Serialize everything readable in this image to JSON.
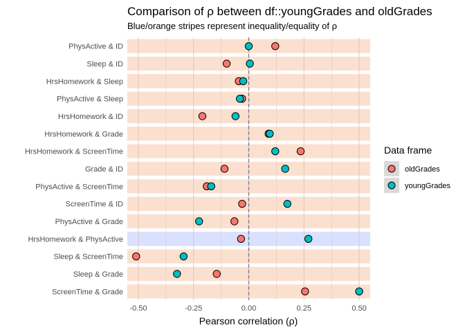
{
  "chart_data": {
    "type": "scatter",
    "title": "Comparison of ρ between df::youngGrades and oldGrades",
    "subtitle": "Blue/orange stripes represent inequality/equality of ρ",
    "xlabel": "Pearson correlation (ρ)",
    "ylabel": "",
    "xlim": [
      -0.55,
      0.55
    ],
    "xticks": [
      -0.5,
      -0.25,
      0,
      0.25,
      0.5
    ],
    "xtick_labels": [
      "-0.50",
      "-0.25",
      "0.00",
      "0.25",
      "0.50"
    ],
    "reference_line": 0,
    "grid": true,
    "legend_position": "right",
    "legend": {
      "title": "Data frame",
      "entries": [
        {
          "name": "oldGrades",
          "color": "#F8766D"
        },
        {
          "name": "youngGrades",
          "color": "#00BFC4"
        }
      ]
    },
    "stripe_colors": {
      "equal": "#FBE0D0",
      "unequal": "#D9E1FF"
    },
    "categories": [
      "PhysActive & ID",
      "Sleep & ID",
      "HrsHomework & Sleep",
      "PhysActive & Sleep",
      "HrsHomework & ID",
      "HrsHomework & Grade",
      "HrsHomework & ScreenTime",
      "Grade & ID",
      "PhysActive & ScreenTime",
      "ScreenTime & ID",
      "PhysActive & Grade",
      "HrsHomework & PhysActive",
      "Sleep & ScreenTime",
      "Sleep & Grade",
      "ScreenTime & Grade"
    ],
    "stripe_status": [
      "equal",
      "equal",
      "equal",
      "equal",
      "equal",
      "equal",
      "equal",
      "equal",
      "equal",
      "equal",
      "equal",
      "unequal",
      "equal",
      "equal",
      "equal"
    ],
    "series": [
      {
        "name": "oldGrades",
        "color": "#F8766D",
        "values": [
          0.12,
          -0.1,
          -0.045,
          -0.03,
          -0.21,
          0.09,
          0.235,
          -0.11,
          -0.19,
          -0.03,
          -0.065,
          -0.035,
          -0.51,
          -0.145,
          0.255
        ]
      },
      {
        "name": "youngGrades",
        "color": "#00BFC4",
        "values": [
          0.0,
          0.005,
          -0.025,
          -0.04,
          -0.06,
          0.095,
          0.12,
          0.165,
          -0.17,
          0.175,
          -0.225,
          0.27,
          -0.295,
          -0.325,
          0.5
        ]
      }
    ]
  }
}
